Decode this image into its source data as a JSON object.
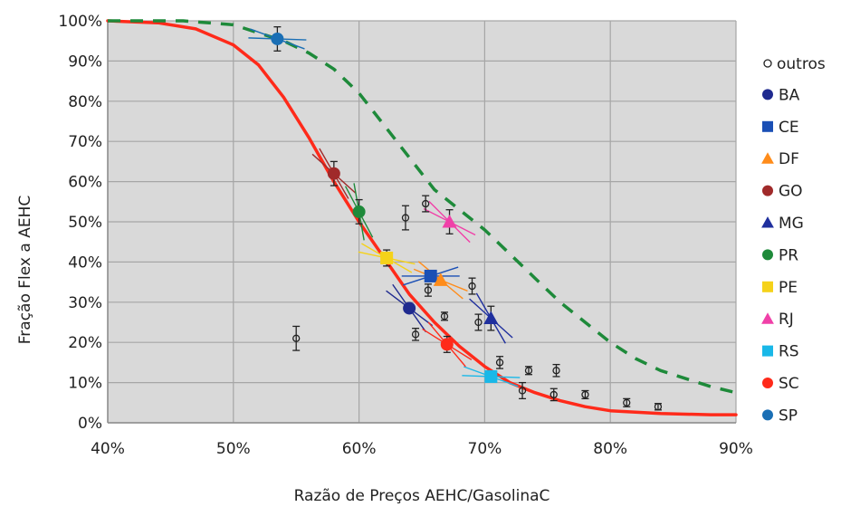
{
  "chart_data": {
    "type": "scatter",
    "title": "",
    "xlabel": "Razão de Preços AEHC/GasolinaC",
    "ylabel": "Fração Flex a AEHC",
    "xlim": [
      40,
      90
    ],
    "ylim": [
      0,
      100
    ],
    "x_ticks": [
      40,
      50,
      60,
      70,
      80,
      90
    ],
    "y_ticks": [
      0,
      10,
      20,
      30,
      40,
      50,
      60,
      70,
      80,
      90,
      100
    ],
    "x_tick_labels": [
      "40%",
      "50%",
      "60%",
      "70%",
      "80%",
      "90%"
    ],
    "y_tick_labels": [
      "0%",
      "10%",
      "20%",
      "30%",
      "40%",
      "50%",
      "60%",
      "70%",
      "80%",
      "90%",
      "100%"
    ],
    "grid": true,
    "plot_background": "#d9d9d9",
    "legend_position": "right",
    "curves": [
      {
        "style": "solid",
        "color": "#ff2a1a",
        "points": [
          [
            40,
            100
          ],
          [
            44,
            99.5
          ],
          [
            47,
            98
          ],
          [
            50,
            94
          ],
          [
            52,
            89
          ],
          [
            54,
            81
          ],
          [
            56,
            71
          ],
          [
            58,
            60
          ],
          [
            60,
            50
          ],
          [
            62,
            41
          ],
          [
            64,
            32
          ],
          [
            66,
            25
          ],
          [
            68,
            19
          ],
          [
            70,
            14
          ],
          [
            72,
            10
          ],
          [
            74,
            7.5
          ],
          [
            76,
            5.5
          ],
          [
            78,
            4
          ],
          [
            80,
            3
          ],
          [
            84,
            2.3
          ],
          [
            88,
            2
          ],
          [
            90,
            2
          ]
        ]
      },
      {
        "style": "dashed",
        "color": "#1e8a3a",
        "points": [
          [
            40,
            100
          ],
          [
            46,
            100
          ],
          [
            50,
            99
          ],
          [
            54,
            95
          ],
          [
            56,
            92
          ],
          [
            58,
            88
          ],
          [
            60,
            82
          ],
          [
            62,
            74
          ],
          [
            64,
            66
          ],
          [
            66,
            58
          ],
          [
            68,
            53
          ],
          [
            70,
            48
          ],
          [
            72,
            42
          ],
          [
            74,
            36
          ],
          [
            76,
            30
          ],
          [
            78,
            25
          ],
          [
            80,
            20
          ],
          [
            82,
            16
          ],
          [
            84,
            13
          ],
          [
            86,
            11
          ],
          [
            88,
            9
          ],
          [
            90,
            7.5
          ]
        ]
      }
    ],
    "outros": {
      "name": "outros",
      "points": [
        {
          "x": 55,
          "y": 21,
          "err": 3
        },
        {
          "x": 63.7,
          "y": 51,
          "err": 3
        },
        {
          "x": 65.3,
          "y": 54.5,
          "err": 2
        },
        {
          "x": 64.5,
          "y": 22,
          "err": 1.5
        },
        {
          "x": 65.5,
          "y": 33,
          "err": 1.5
        },
        {
          "x": 66.8,
          "y": 26.5,
          "err": 1
        },
        {
          "x": 69,
          "y": 34,
          "err": 2
        },
        {
          "x": 69.5,
          "y": 25,
          "err": 2
        },
        {
          "x": 71.2,
          "y": 15,
          "err": 1.5
        },
        {
          "x": 73,
          "y": 8,
          "err": 2
        },
        {
          "x": 73.5,
          "y": 13,
          "err": 1
        },
        {
          "x": 75.5,
          "y": 7,
          "err": 1.5
        },
        {
          "x": 75.7,
          "y": 13,
          "err": 1.5
        },
        {
          "x": 78,
          "y": 7,
          "err": 1
        },
        {
          "x": 81.3,
          "y": 5,
          "err": 1
        },
        {
          "x": 83.8,
          "y": 4,
          "err": 0.8
        }
      ]
    },
    "series": [
      {
        "name": "BA",
        "marker": "circle",
        "color": "#1f2a8f",
        "x": 64,
        "y": 28.5,
        "err": 0,
        "slope": -55
      },
      {
        "name": "CE",
        "marker": "square",
        "color": "#1a4fb5",
        "x": 65.7,
        "y": 36.5,
        "err": 0,
        "slope": 0
      },
      {
        "name": "DF",
        "marker": "triangle",
        "color": "#ff8c1a",
        "x": 66.5,
        "y": 35.5,
        "err": 0,
        "slope": -40
      },
      {
        "name": "GO",
        "marker": "circle",
        "color": "#a02a2a",
        "x": 58,
        "y": 62,
        "err": 3,
        "slope": -60
      },
      {
        "name": "MG",
        "marker": "triangle",
        "color": "#1f2f9e",
        "x": 70.5,
        "y": 26,
        "err": 3,
        "slope": -60
      },
      {
        "name": "PR",
        "marker": "circle",
        "color": "#1e8a3a",
        "x": 60,
        "y": 52.5,
        "err": 3,
        "slope": -80
      },
      {
        "name": "PE",
        "marker": "square",
        "color": "#f5d21a",
        "x": 62.2,
        "y": 41,
        "err": 2,
        "slope": -30
      },
      {
        "name": "RJ",
        "marker": "triangle",
        "color": "#f040a8",
        "x": 67.2,
        "y": 50,
        "err": 3,
        "slope": -45
      },
      {
        "name": "RS",
        "marker": "square",
        "color": "#19b8e8",
        "x": 70.5,
        "y": 11.5,
        "err": 0,
        "slope": -20
      },
      {
        "name": "SC",
        "marker": "circle",
        "color": "#ff2a1a",
        "x": 67,
        "y": 19.5,
        "err": 2,
        "slope": -50
      },
      {
        "name": "SP",
        "marker": "circle",
        "color": "#1a6fb5",
        "x": 53.5,
        "y": 95.5,
        "err": 3,
        "slope": -20
      }
    ]
  }
}
